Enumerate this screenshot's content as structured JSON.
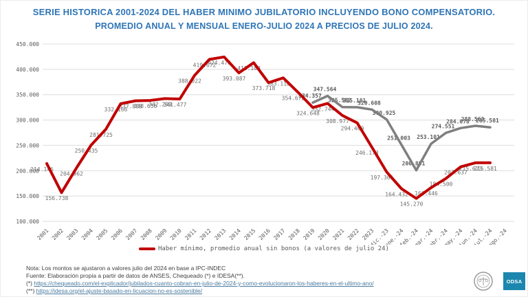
{
  "title": {
    "line1": "SERIE HISTORICA 2001-2024 DEL HABER MINIMO JUBILATORIO INCLUYENDO BONO COMPENSATORIO.",
    "line2": "PROMEDIO ANUAL Y MENSUAL ENERO-JULIO 2024 A PRECIOS DE JULIO 2024.",
    "color": "#2e75b6"
  },
  "legend": {
    "label": "Haber mínimo, promedio anual sin bonos (a valores de julio 24)",
    "marker_color": "#c00000"
  },
  "footnotes": {
    "nota": "Nota: Los montos se ajustaron a valores julio del 2024 en base a IPC-INDEC",
    "fuente": "Fuente: Elaboración propia a partir de datos de ANSES, Chequeado (*) e IDESA(**).",
    "ref1_prefix": "(*)",
    "ref1_url": "https://chequeado.com/el-explicador/jubilados-cuanto-cobran-en-julio-de-2024-y-como-evolucionaron-los-haberes-en-el-ultimo-ano/",
    "ref2_prefix": "(**)",
    "ref2_url": "https://idesa.org/el-ajuste-basado-en-licuacion-no-es-sostenible/"
  },
  "logos": {
    "odsa_label": "ODSA",
    "odsa_color": "#1b87af"
  },
  "chart_data": {
    "type": "line",
    "title": "Serie histórica 2001-2024 del haber mínimo jubilatorio incluyendo bono compensatorio",
    "xlabel": "",
    "ylabel": "",
    "ylim": [
      100000,
      450000
    ],
    "ytick_step": 50000,
    "grid": true,
    "legend_position": "bottom",
    "categories": [
      "2001",
      "2002",
      "2003",
      "2004",
      "2005",
      "2006",
      "2007",
      "2008",
      "2009",
      "2010",
      "2011",
      "2012",
      "2013",
      "2014",
      "2015",
      "2016",
      "2017",
      "2018",
      "2019",
      "2020",
      "2021",
      "2022",
      "2023",
      "dic.-23",
      "ene.-24",
      "feb.-24",
      "mar.-24",
      "abr.-24",
      "may.-24",
      "jun.-24",
      "jul.-24",
      "ago.-24"
    ],
    "series": [
      {
        "id": "con-bonos",
        "name": "",
        "color": "#7f7f7f",
        "stroke_width": 3.5,
        "label_color": "#595959",
        "label_bold": true,
        "label_dx": -4,
        "label_dy": -7,
        "values": [
          null,
          null,
          null,
          null,
          null,
          null,
          null,
          null,
          null,
          null,
          null,
          null,
          null,
          null,
          null,
          null,
          null,
          null,
          334357,
          347564,
          325582,
          325181,
          320608,
          300925,
          251003,
          200891,
          253101,
          274551,
          284078,
          288563,
          285581,
          null
        ]
      },
      {
        "id": "sin-bonos",
        "name": "Haber mínimo, promedio anual sin bonos (a valores de julio 24)",
        "color": "#c00000",
        "stroke_width": 4,
        "label_color": "#6d6d6d",
        "label_bold": false,
        "label_dx": -7,
        "label_dy": 11,
        "values": [
          214146,
          156738,
          204962,
          250435,
          281725,
          332166,
          337888,
          338656,
          342299,
          341477,
          388022,
          419672,
          424476,
          393087,
          413109,
          373718,
          383118,
          354672,
          324648,
          332744,
          308977,
          294400,
          246173,
          197361,
          164432,
          145270,
          166446,
          184500,
          207637,
          215623,
          215581,
          null
        ]
      }
    ]
  }
}
